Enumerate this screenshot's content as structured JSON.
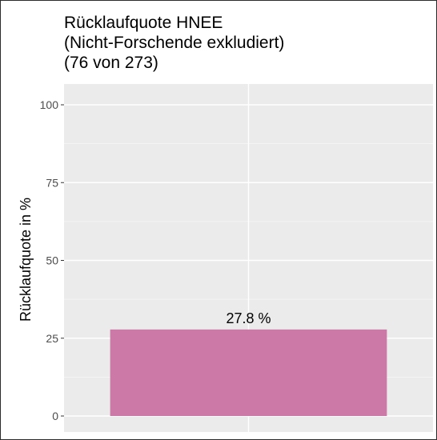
{
  "chart_data": {
    "type": "bar",
    "title_lines": [
      "Rücklaufquote HNEE",
      "(Nicht-Forschende exkludiert)",
      "(76 von 273)"
    ],
    "xlabel": "",
    "ylabel": "Rücklaufquote in %",
    "ylim": [
      0,
      105
    ],
    "yticks": [
      0,
      25,
      50,
      75,
      100
    ],
    "ytick_labels": [
      "0",
      "25",
      "50",
      "75",
      "100"
    ],
    "values": [
      27.8
    ],
    "data_labels": [
      "27.8 %"
    ],
    "bar_color": "#cc79a7",
    "panel_color": "#ebebeb",
    "grid": true
  }
}
